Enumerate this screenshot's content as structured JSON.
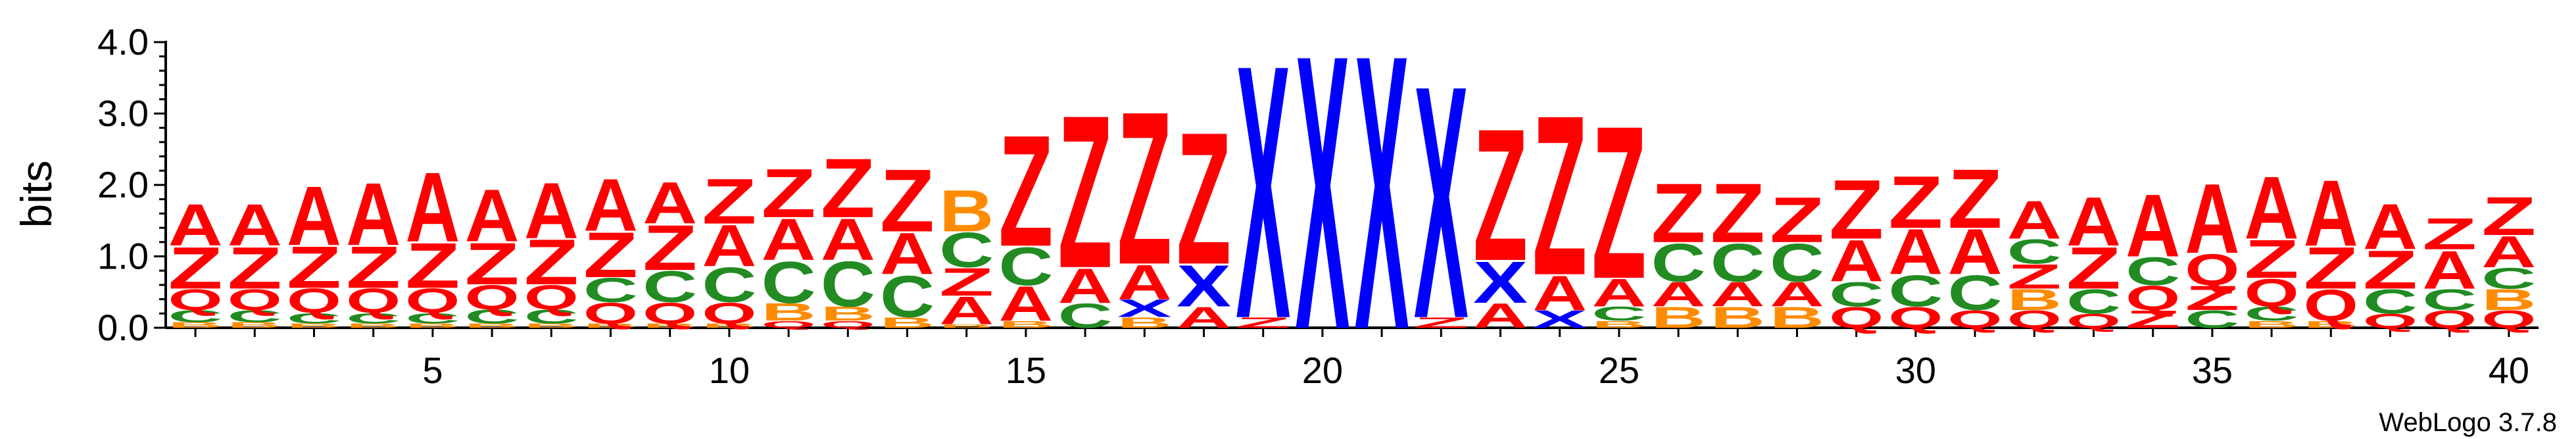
{
  "chart_data": {
    "type": "sequence-logo",
    "ylabel": "bits",
    "ylim": [
      0,
      4.0
    ],
    "yticks": [
      "0.0",
      "1.0",
      "2.0",
      "3.0",
      "4.0"
    ],
    "ytick_values": [
      0,
      1,
      2,
      3,
      4
    ],
    "xlim": [
      0.5,
      40.5
    ],
    "xticks": [
      5,
      10,
      15,
      20,
      25,
      30,
      35,
      40
    ],
    "credit": "WebLogo 3.7.8",
    "colors": {
      "A": "#ff0000",
      "Z": "#ff0000",
      "Q": "#ff0000",
      "B": "#ff8c00",
      "C": "#228b22",
      "X": "#0000ff"
    },
    "positions": [
      [
        [
          "B",
          0.08
        ],
        [
          "C",
          0.17
        ],
        [
          "Q",
          0.3
        ],
        [
          "Z",
          0.6
        ],
        [
          "A",
          0.6
        ]
      ],
      [
        [
          "B",
          0.08
        ],
        [
          "C",
          0.17
        ],
        [
          "Q",
          0.3
        ],
        [
          "Z",
          0.6
        ],
        [
          "A",
          0.6
        ]
      ],
      [
        [
          "B",
          0.06
        ],
        [
          "C",
          0.15
        ],
        [
          "Q",
          0.35
        ],
        [
          "Z",
          0.6
        ],
        [
          "A",
          0.85
        ]
      ],
      [
        [
          "B",
          0.06
        ],
        [
          "C",
          0.15
        ],
        [
          "Q",
          0.35
        ],
        [
          "Z",
          0.6
        ],
        [
          "A",
          0.9
        ]
      ],
      [
        [
          "B",
          0.06
        ],
        [
          "C",
          0.15
        ],
        [
          "Q",
          0.35
        ],
        [
          "Z",
          0.65
        ],
        [
          "A",
          1.0
        ]
      ],
      [
        [
          "B",
          0.06
        ],
        [
          "C",
          0.2
        ],
        [
          "Q",
          0.35
        ],
        [
          "Z",
          0.6
        ],
        [
          "A",
          0.75
        ]
      ],
      [
        [
          "B",
          0.06
        ],
        [
          "C",
          0.2
        ],
        [
          "Q",
          0.35
        ],
        [
          "Z",
          0.65
        ],
        [
          "A",
          0.8
        ]
      ],
      [
        [
          "B",
          0.06
        ],
        [
          "Q",
          0.3
        ],
        [
          "C",
          0.35
        ],
        [
          "Z",
          0.65
        ],
        [
          "A",
          0.75
        ]
      ],
      [
        [
          "B",
          0.06
        ],
        [
          "Q",
          0.3
        ],
        [
          "C",
          0.45
        ],
        [
          "Z",
          0.65
        ],
        [
          "A",
          0.6
        ]
      ],
      [
        [
          "B",
          0.06
        ],
        [
          "Q",
          0.3
        ],
        [
          "C",
          0.5
        ],
        [
          "A",
          0.6
        ],
        [
          "Z",
          0.65
        ]
      ],
      [
        [
          "Q",
          0.1
        ],
        [
          "B",
          0.25
        ],
        [
          "C",
          0.6
        ],
        [
          "A",
          0.6
        ],
        [
          "Z",
          0.7
        ]
      ],
      [
        [
          "Q",
          0.1
        ],
        [
          "B",
          0.2
        ],
        [
          "C",
          0.65
        ],
        [
          "A",
          0.6
        ],
        [
          "Z",
          0.85
        ]
      ],
      [
        [
          "B",
          0.15
        ],
        [
          "C",
          0.6
        ],
        [
          "A",
          0.6
        ],
        [
          "Z",
          0.9
        ]
      ],
      [
        [
          "B",
          0.05
        ],
        [
          "A",
          0.4
        ],
        [
          "Z",
          0.4
        ],
        [
          "C",
          0.5
        ],
        [
          "B",
          0.6
        ]
      ],
      [
        [
          "B",
          0.1
        ],
        [
          "A",
          0.5
        ],
        [
          "C",
          0.55
        ],
        [
          "Z",
          1.6
        ]
      ],
      [
        [
          "C",
          0.35
        ],
        [
          "A",
          0.5
        ],
        [
          "Z",
          2.2
        ]
      ],
      [
        [
          "B",
          0.15
        ],
        [
          "X",
          0.25
        ],
        [
          "A",
          0.5
        ],
        [
          "Z",
          2.2
        ]
      ],
      [
        [
          "A",
          0.3
        ],
        [
          "X",
          0.6
        ],
        [
          "Z",
          1.9
        ]
      ],
      [
        [
          "Z",
          0.15
        ],
        [
          "X",
          3.65
        ]
      ],
      [
        [
          "X",
          3.95
        ]
      ],
      [
        [
          "X",
          3.95
        ]
      ],
      [
        [
          "Z",
          0.15
        ],
        [
          "X",
          3.35
        ]
      ],
      [
        [
          "A",
          0.35
        ],
        [
          "X",
          0.6
        ],
        [
          "Z",
          1.9
        ]
      ],
      [
        [
          "X",
          0.25
        ],
        [
          "A",
          0.5
        ],
        [
          "Z",
          2.3
        ]
      ],
      [
        [
          "B",
          0.1
        ],
        [
          "C",
          0.2
        ],
        [
          "A",
          0.4
        ],
        [
          "Z",
          2.2
        ]
      ],
      [
        [
          "B",
          0.3
        ],
        [
          "A",
          0.35
        ],
        [
          "C",
          0.55
        ],
        [
          "Z",
          0.85
        ]
      ],
      [
        [
          "B",
          0.3
        ],
        [
          "A",
          0.35
        ],
        [
          "C",
          0.55
        ],
        [
          "Z",
          0.85
        ]
      ],
      [
        [
          "B",
          0.3
        ],
        [
          "A",
          0.35
        ],
        [
          "C",
          0.55
        ],
        [
          "Z",
          0.65
        ]
      ],
      [
        [
          "Q",
          0.3
        ],
        [
          "C",
          0.35
        ],
        [
          "A",
          0.6
        ],
        [
          "Z",
          0.85
        ]
      ],
      [
        [
          "Q",
          0.3
        ],
        [
          "C",
          0.45
        ],
        [
          "A",
          0.65
        ],
        [
          "Z",
          0.75
        ]
      ],
      [
        [
          "Q",
          0.25
        ],
        [
          "C",
          0.5
        ],
        [
          "A",
          0.65
        ],
        [
          "Z",
          0.85
        ]
      ],
      [
        [
          "Q",
          0.25
        ],
        [
          "B",
          0.3
        ],
        [
          "Z",
          0.35
        ],
        [
          "C",
          0.35
        ],
        [
          "A",
          0.55
        ]
      ],
      [
        [
          "Q",
          0.2
        ],
        [
          "C",
          0.35
        ],
        [
          "Z",
          0.6
        ],
        [
          "A",
          0.7
        ]
      ],
      [
        [
          "Z",
          0.25
        ],
        [
          "Q",
          0.35
        ],
        [
          "C",
          0.4
        ],
        [
          "A",
          0.9
        ]
      ],
      [
        [
          "C",
          0.25
        ],
        [
          "Z",
          0.35
        ],
        [
          "Q",
          0.45
        ],
        [
          "A",
          1.0
        ]
      ],
      [
        [
          "B",
          0.1
        ],
        [
          "C",
          0.2
        ],
        [
          "Q",
          0.4
        ],
        [
          "Z",
          0.55
        ],
        [
          "A",
          0.9
        ]
      ],
      [
        [
          "B",
          0.1
        ],
        [
          "Q",
          0.45
        ],
        [
          "Z",
          0.6
        ],
        [
          "A",
          0.95
        ]
      ],
      [
        [
          "Q",
          0.2
        ],
        [
          "C",
          0.35
        ],
        [
          "Z",
          0.55
        ],
        [
          "A",
          0.65
        ]
      ],
      [
        [
          "Q",
          0.25
        ],
        [
          "C",
          0.3
        ],
        [
          "A",
          0.55
        ],
        [
          "Z",
          0.45
        ]
      ],
      [
        [
          "Q",
          0.25
        ],
        [
          "B",
          0.3
        ],
        [
          "C",
          0.3
        ],
        [
          "A",
          0.45
        ],
        [
          "Z",
          0.55
        ]
      ]
    ]
  }
}
